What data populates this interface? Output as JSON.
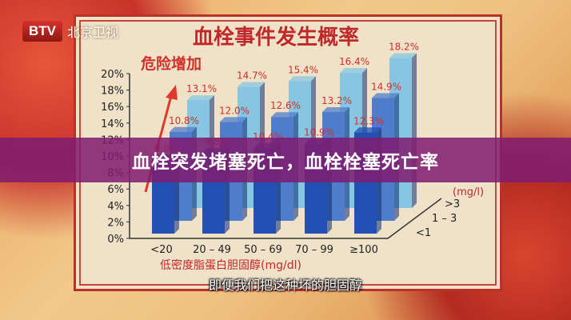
{
  "channel": {
    "logo": "BTV",
    "name": "北京卫视"
  },
  "overlay_title": "血栓突发堵塞死亡，血栓栓塞死亡率",
  "subtitle": "即便我们把这种坏的胆固醇",
  "chart_data": {
    "type": "bar",
    "style": "3d-grouped",
    "title": "血栓事件发生概率",
    "annotation": "危险增加",
    "xlabel": "低密度脂蛋白胆固醇(mg/dl)",
    "depth_label_fragment": "(mg/l)",
    "categories": [
      "<20",
      "20 – 49",
      "50 – 69",
      "70 – 99",
      "≥100"
    ],
    "depth_categories": [
      "<1",
      "1 – 3",
      ">3"
    ],
    "yticks": [
      "0%",
      "2%",
      "4%",
      "6%",
      "8%",
      "10%",
      "12%",
      "14%",
      "16%",
      "18%",
      "20%"
    ],
    "ylim": [
      0,
      20
    ],
    "series": [
      {
        "name": "<1",
        "values": [
          9.0,
          9.8,
          10.4,
          10.9,
          12.3
        ],
        "color": "#2250b4"
      },
      {
        "name": "1 – 3",
        "values": [
          10.8,
          12.0,
          12.6,
          13.2,
          14.9
        ],
        "color": "#4f7ccb"
      },
      {
        "name": ">3",
        "values": [
          13.1,
          14.7,
          15.4,
          16.4,
          18.2
        ],
        "color": "#86c6e2"
      }
    ],
    "label_color": "#d0302a"
  }
}
